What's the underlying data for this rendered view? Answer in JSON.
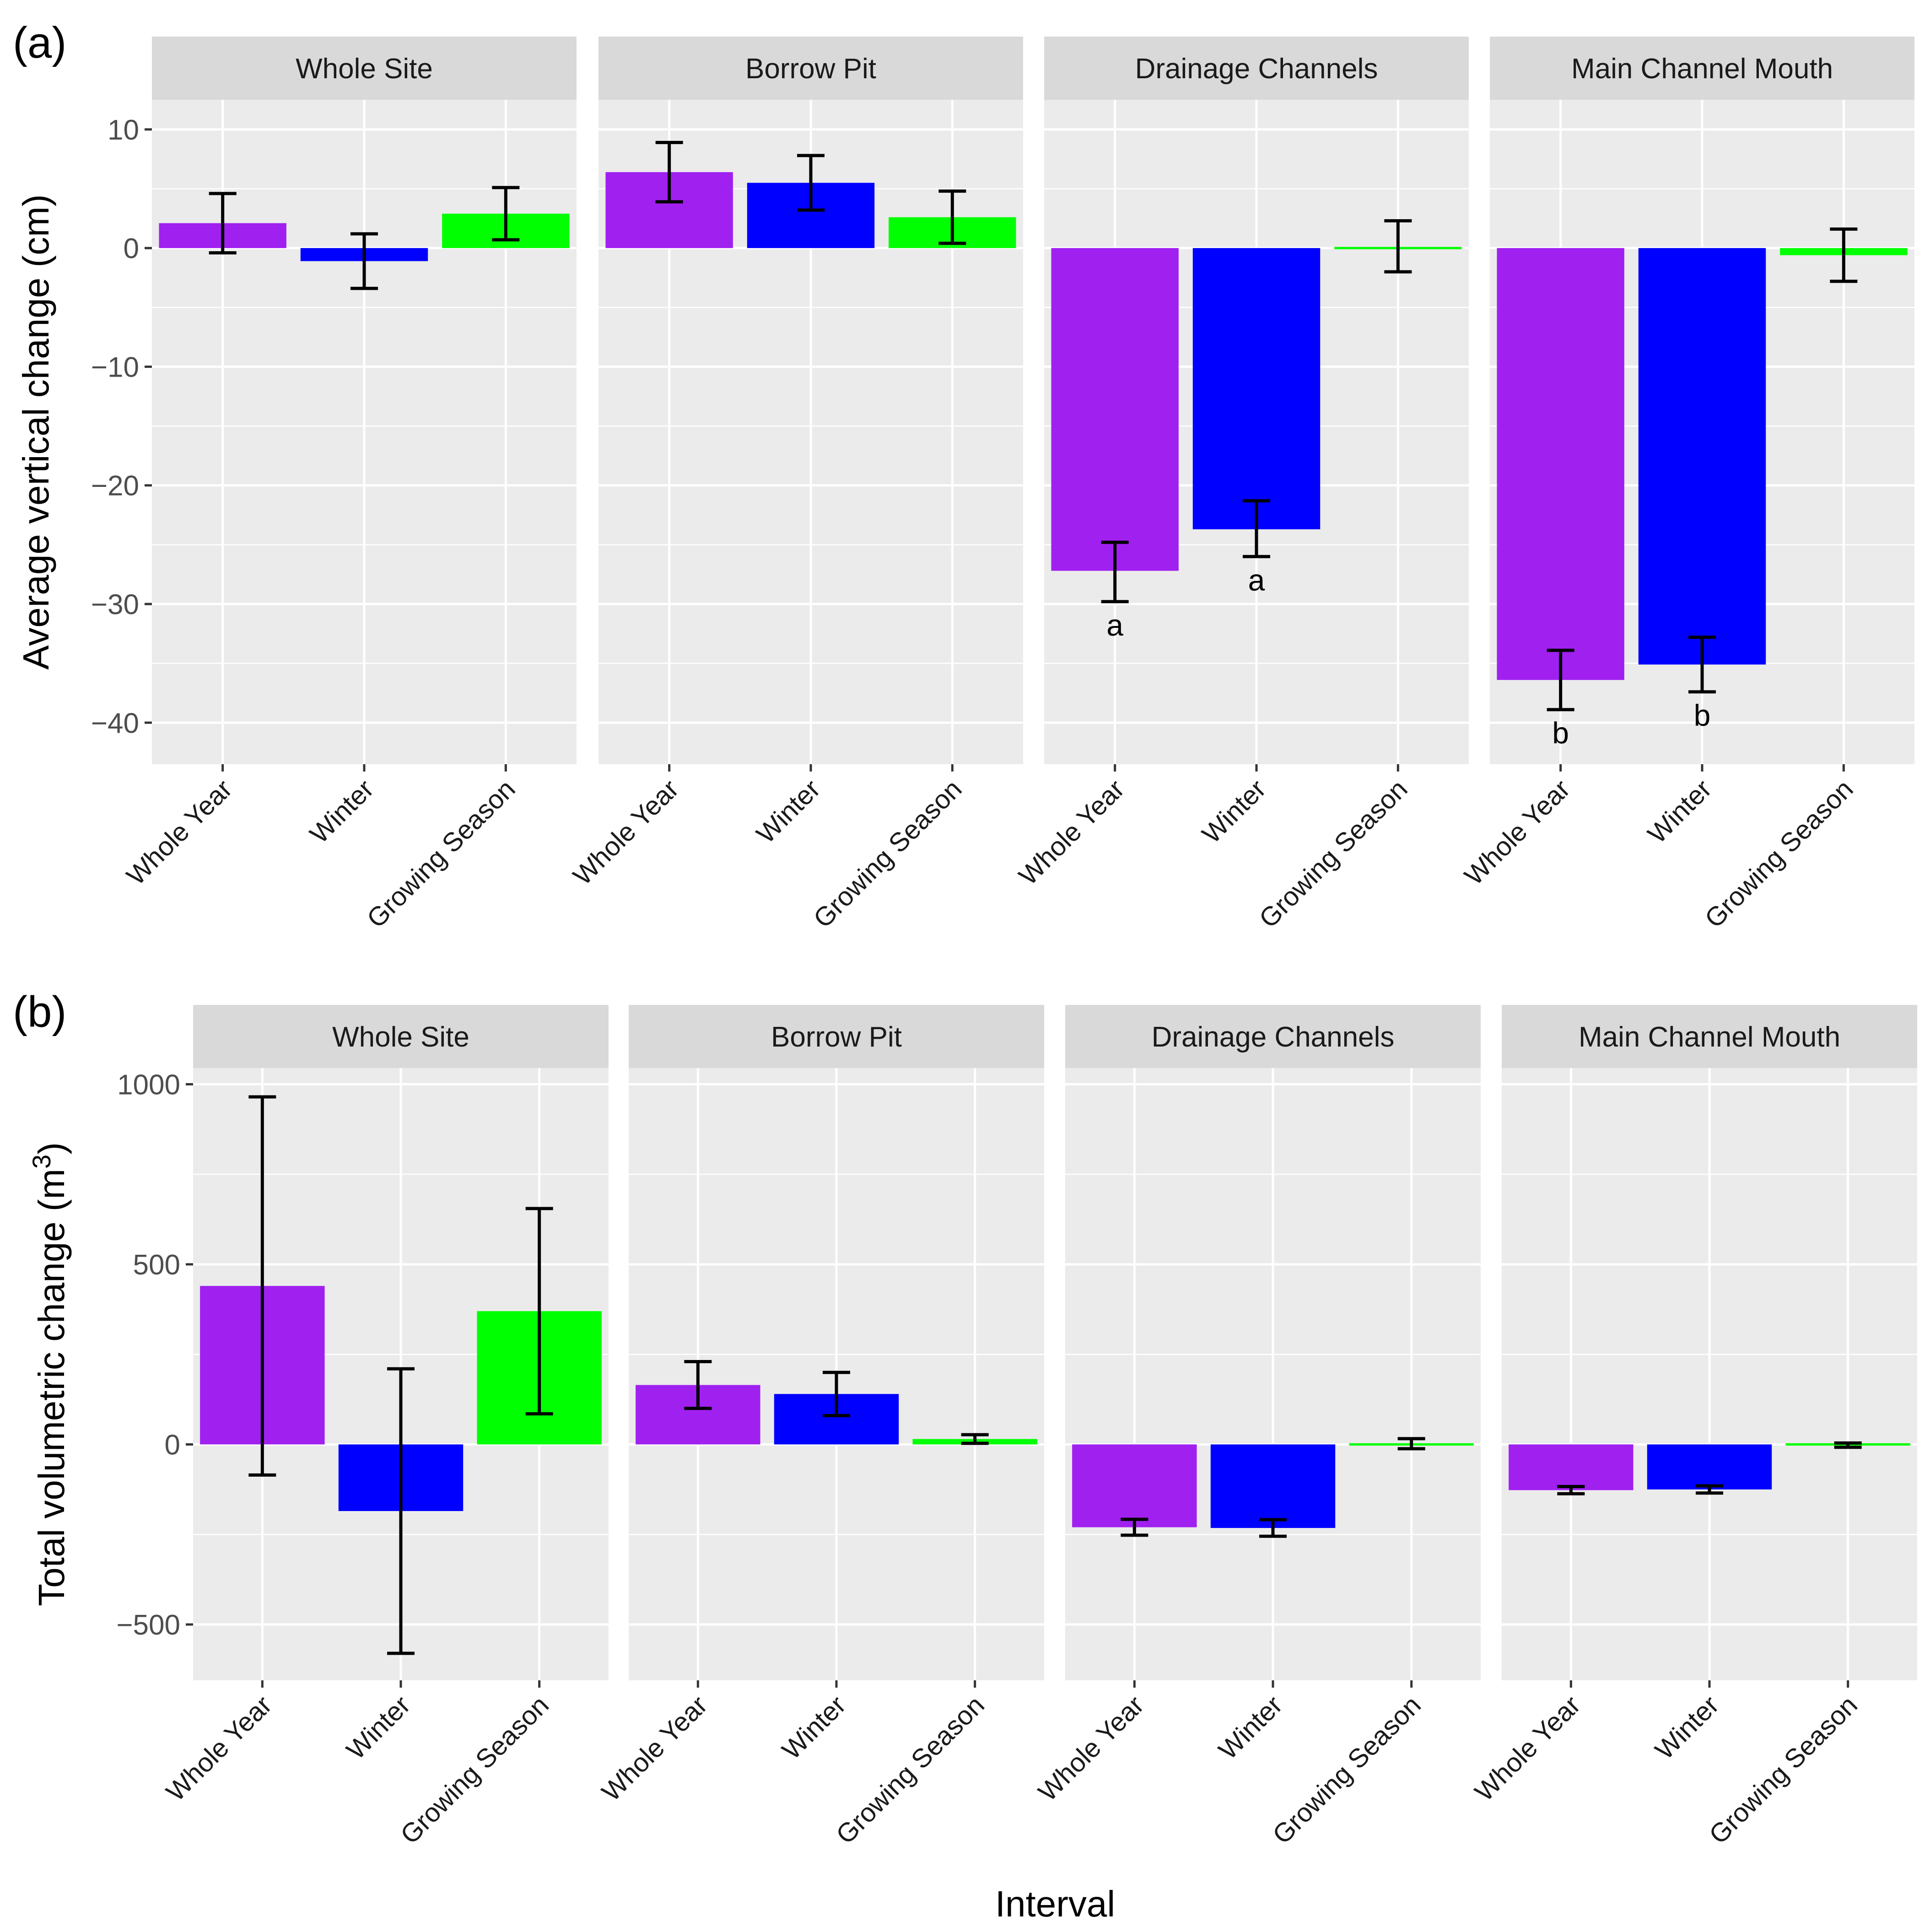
{
  "chart_data": [
    {
      "type": "bar",
      "tag": "(a)",
      "ylabel": "Average vertical change (cm)",
      "xlabel": "",
      "ylim": [
        -43.5,
        12.5
      ],
      "yticks": [
        10,
        0,
        -10,
        -20,
        -30,
        -40
      ],
      "ytick_labels": [
        "10",
        "0",
        "−10",
        "−20",
        "−30",
        "−40"
      ],
      "categories": [
        "Whole Year",
        "Winter",
        "Growing Season"
      ],
      "colors": [
        "#a020f0",
        "#0000ff",
        "#00ff00"
      ],
      "facets": [
        {
          "name": "Whole Site",
          "values": [
            2.1,
            -1.1,
            2.9
          ],
          "err_low": [
            -0.4,
            -3.4,
            0.7
          ],
          "err_high": [
            4.6,
            1.2,
            5.1
          ],
          "labels": [
            "",
            "",
            ""
          ]
        },
        {
          "name": "Borrow Pit",
          "values": [
            6.4,
            5.5,
            2.6
          ],
          "err_low": [
            3.9,
            3.2,
            0.4
          ],
          "err_high": [
            8.9,
            7.8,
            4.8
          ],
          "labels": [
            "",
            "",
            ""
          ]
        },
        {
          "name": "Drainage Channels",
          "values": [
            -27.2,
            -23.7,
            0.1
          ],
          "err_low": [
            -29.8,
            -26.0,
            -2.0
          ],
          "err_high": [
            -24.8,
            -21.3,
            2.3
          ],
          "labels": [
            "a",
            "a",
            ""
          ]
        },
        {
          "name": "Main Channel Mouth",
          "values": [
            -36.4,
            -35.1,
            -0.6
          ],
          "err_low": [
            -38.9,
            -37.4,
            -2.8
          ],
          "err_high": [
            -33.9,
            -32.8,
            1.6
          ],
          "labels": [
            "b",
            "b",
            ""
          ]
        }
      ]
    },
    {
      "type": "bar",
      "tag": "(b)",
      "ylabel_main": "Total volumetric change (m",
      "ylabel_sup": "3",
      "ylabel_end": ")",
      "xlabel": "Interval",
      "ylim": [
        -655,
        1045
      ],
      "yticks": [
        1000,
        500,
        0,
        -500
      ],
      "ytick_labels": [
        "1000",
        "500",
        "0",
        "−500"
      ],
      "categories": [
        "Whole Year",
        "Winter",
        "Growing Season"
      ],
      "colors": [
        "#a020f0",
        "#0000ff",
        "#00ff00"
      ],
      "facets": [
        {
          "name": "Whole Site",
          "values": [
            440,
            -185,
            370
          ],
          "err_low": [
            -85,
            -580,
            85
          ],
          "err_high": [
            965,
            210,
            655
          ],
          "labels": [
            "",
            "",
            ""
          ]
        },
        {
          "name": "Borrow Pit",
          "values": [
            165,
            140,
            15
          ],
          "err_low": [
            100,
            80,
            3
          ],
          "err_high": [
            230,
            200,
            27
          ],
          "labels": [
            "",
            "",
            ""
          ]
        },
        {
          "name": "Drainage Channels",
          "values": [
            -230,
            -232,
            2
          ],
          "err_low": [
            -252,
            -255,
            -12
          ],
          "err_high": [
            -208,
            -209,
            16
          ],
          "labels": [
            "",
            "",
            ""
          ]
        },
        {
          "name": "Main Channel Mouth",
          "values": [
            -127,
            -125,
            -2
          ],
          "err_low": [
            -137,
            -135,
            -8
          ],
          "err_high": [
            -117,
            -115,
            4
          ],
          "labels": [
            "",
            "",
            ""
          ]
        }
      ]
    }
  ]
}
